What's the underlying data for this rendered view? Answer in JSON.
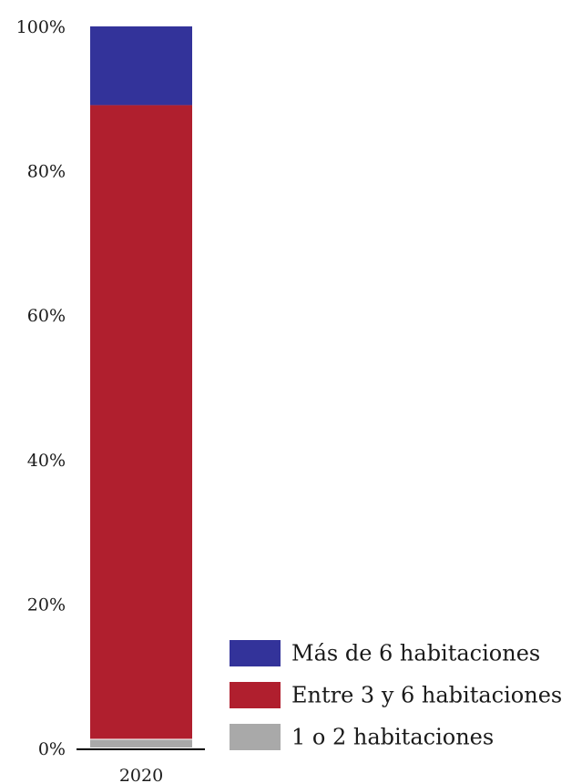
{
  "chart_data": {
    "type": "bar",
    "stacked": true,
    "percent": true,
    "categories": [
      "2020"
    ],
    "series": [
      {
        "name": "1 o 2 habitaciones",
        "values": [
          1.2
        ],
        "color": "#a9a9a9"
      },
      {
        "name": "Entre 3 y 6 habitaciones",
        "values": [
          87.9
        ],
        "color": "#b01f2e"
      },
      {
        "name": "Más de 6 habitaciones",
        "values": [
          10.9
        ],
        "color": "#33339a"
      }
    ],
    "ylim": [
      0,
      100
    ],
    "yticks": [
      "0%",
      "20%",
      "40%",
      "60%",
      "80%",
      "100%"
    ],
    "ytick_values": [
      0,
      20,
      40,
      60,
      80,
      100
    ],
    "grid": false,
    "legend_position": "bottom-right",
    "legend_order": [
      "Más de 6 habitaciones",
      "Entre 3 y 6 habitaciones",
      "1 o 2 habitaciones"
    ]
  }
}
